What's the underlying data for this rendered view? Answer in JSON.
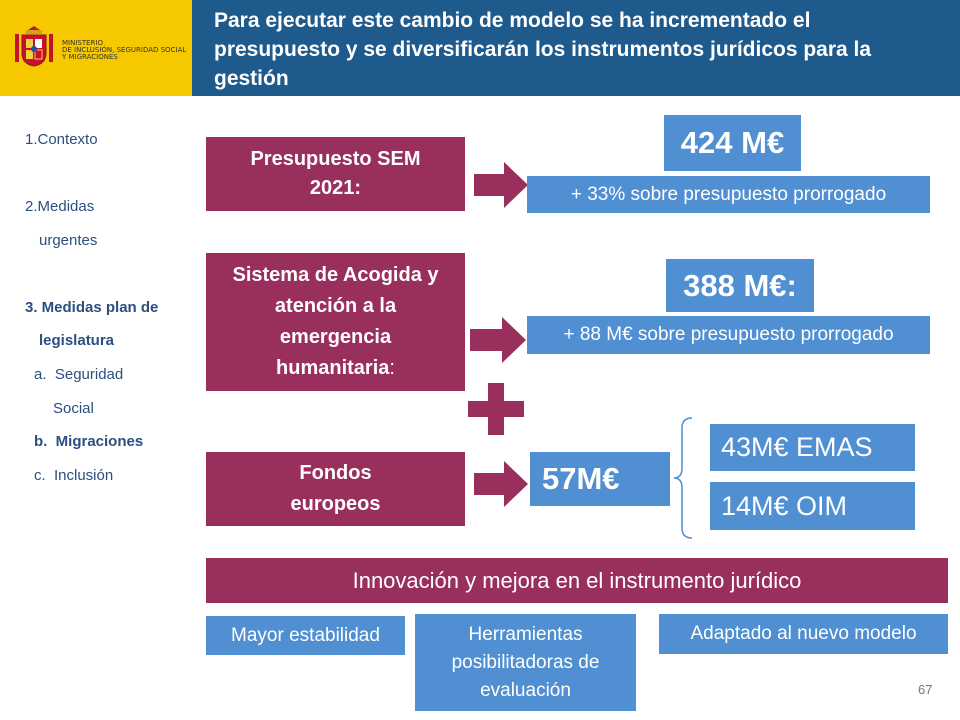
{
  "header": {
    "ministry_lines": [
      "MINISTERIO",
      "DE INCLUSIÓN, SEGURIDAD SOCIAL",
      "Y MIGRACIONES"
    ],
    "title_lines": [
      "Para ejecutar este cambio de modelo se ha incrementado el",
      "presupuesto y se diversificarán los instrumentos jurídicos para la",
      "gestión"
    ]
  },
  "sidebar": {
    "items": [
      {
        "label": "1.Contexto"
      },
      {
        "label": "2.Medidas"
      },
      {
        "label": "urgentes"
      },
      {
        "label": "3. Medidas plan de"
      },
      {
        "label": "legislatura"
      },
      {
        "label": "a.  Seguridad"
      },
      {
        "label": "Social"
      },
      {
        "label": "b.  Migraciones"
      },
      {
        "label": "c.  Inclusión"
      }
    ]
  },
  "rows": {
    "sem": {
      "label_lines": [
        "Presupuesto SEM",
        "2021:"
      ],
      "amount": "424 M€",
      "note": "+ 33% sobre presupuesto prorrogado"
    },
    "acogida": {
      "label_lines": [
        "Sistema de Acogida y",
        "atención a la",
        "emergencia",
        "humanitaria"
      ],
      "label_suffix": ":",
      "amount": "388 M€:",
      "note": "+ 88 M€ sobre presupuesto prorrogado"
    },
    "fondos": {
      "label_lines": [
        "Fondos",
        "europeos"
      ],
      "amount": "57M€",
      "breakdown": [
        "43M€ EMAS",
        "14M€ OIM"
      ]
    }
  },
  "innovation": {
    "banner": "Innovación y mejora en el instrumento jurídico",
    "items": [
      {
        "lines": [
          "Mayor estabilidad"
        ]
      },
      {
        "lines": [
          "Herramientas",
          "posibilitadoras de",
          "evaluación"
        ]
      },
      {
        "lines": [
          "Adaptado al nuevo modelo"
        ]
      }
    ]
  },
  "page_number": "67",
  "colors": {
    "title_bar": "#1f5a8c",
    "logo_bg": "#f6c800",
    "maroon": "#992f5c",
    "blue": "#4f8fd2",
    "sidebar_text": "#2b4f80"
  }
}
